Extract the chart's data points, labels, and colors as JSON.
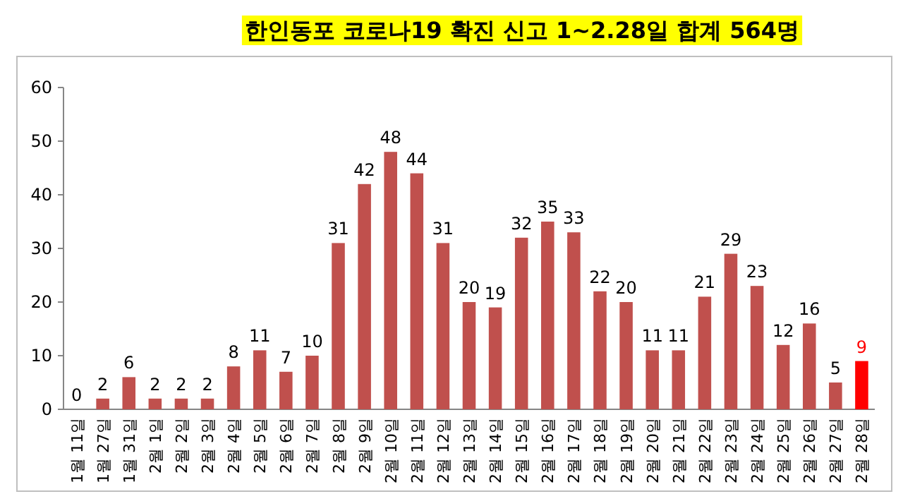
{
  "chart_data": {
    "type": "bar",
    "title": "한인동포 코로나19 확진 신고 1~2.28일 합계 564명",
    "categories": [
      "1월 11일",
      "1월 27일",
      "1월 31일",
      "2월 1일",
      "2월 2일",
      "2월 3일",
      "2월 4일",
      "2월 5일",
      "2월 6일",
      "2월 7일",
      "2월 8일",
      "2월 9일",
      "2월 10일",
      "2월 11일",
      "2월 12일",
      "2월 13일",
      "2월 14일",
      "2월 15일",
      "2월 16일",
      "2월 17일",
      "2월 18일",
      "2월 19일",
      "2월 20일",
      "2월 21일",
      "2월 22일",
      "2월 23일",
      "2월 24일",
      "2월 25일",
      "2월 26일",
      "2월 27일",
      "2월 28일"
    ],
    "values": [
      0,
      2,
      6,
      2,
      2,
      2,
      8,
      11,
      7,
      10,
      31,
      42,
      48,
      44,
      31,
      20,
      19,
      32,
      35,
      33,
      22,
      20,
      11,
      11,
      21,
      29,
      23,
      12,
      16,
      5,
      9
    ],
    "colors": [
      "#c0504d",
      "#c0504d",
      "#c0504d",
      "#c0504d",
      "#c0504d",
      "#c0504d",
      "#c0504d",
      "#c0504d",
      "#c0504d",
      "#c0504d",
      "#c0504d",
      "#c0504d",
      "#c0504d",
      "#c0504d",
      "#c0504d",
      "#c0504d",
      "#c0504d",
      "#c0504d",
      "#c0504d",
      "#c0504d",
      "#c0504d",
      "#c0504d",
      "#c0504d",
      "#c0504d",
      "#c0504d",
      "#c0504d",
      "#c0504d",
      "#c0504d",
      "#c0504d",
      "#c0504d",
      "#ff0000"
    ],
    "ylim": [
      0,
      60
    ],
    "yticks": [
      0,
      10,
      20,
      30,
      40,
      50,
      60
    ],
    "data_labels": true
  }
}
